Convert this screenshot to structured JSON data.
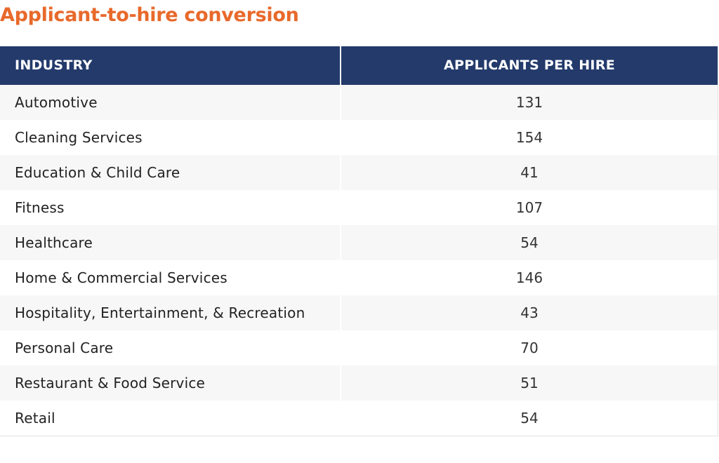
{
  "title": "Applicant-to-hire conversion",
  "colors": {
    "title": "#e8692b",
    "header_bg": "#233a6b",
    "header_text": "#ffffff",
    "row_alt_bg": "#f7f7f7"
  },
  "table": {
    "headers": [
      "INDUSTRY",
      "APPLICANTS PER HIRE"
    ],
    "rows": [
      {
        "industry": "Automotive",
        "applicants_per_hire": "131"
      },
      {
        "industry": "Cleaning Services",
        "applicants_per_hire": "154"
      },
      {
        "industry": "Education & Child Care",
        "applicants_per_hire": "41"
      },
      {
        "industry": "Fitness",
        "applicants_per_hire": "107"
      },
      {
        "industry": "Healthcare",
        "applicants_per_hire": "54"
      },
      {
        "industry": "Home & Commercial Services",
        "applicants_per_hire": "146"
      },
      {
        "industry": "Hospitality, Entertainment, & Recreation",
        "applicants_per_hire": "43"
      },
      {
        "industry": "Personal Care",
        "applicants_per_hire": "70"
      },
      {
        "industry": "Restaurant & Food Service",
        "applicants_per_hire": "51"
      },
      {
        "industry": "Retail",
        "applicants_per_hire": "54"
      }
    ]
  },
  "chart_data": {
    "type": "table",
    "title": "Applicant-to-hire conversion",
    "columns": [
      "INDUSTRY",
      "APPLICANTS PER HIRE"
    ],
    "categories": [
      "Automotive",
      "Cleaning Services",
      "Education & Child Care",
      "Fitness",
      "Healthcare",
      "Home & Commercial Services",
      "Hospitality, Entertainment, & Recreation",
      "Personal Care",
      "Restaurant & Food Service",
      "Retail"
    ],
    "values": [
      131,
      154,
      41,
      107,
      54,
      146,
      43,
      70,
      51,
      54
    ]
  }
}
